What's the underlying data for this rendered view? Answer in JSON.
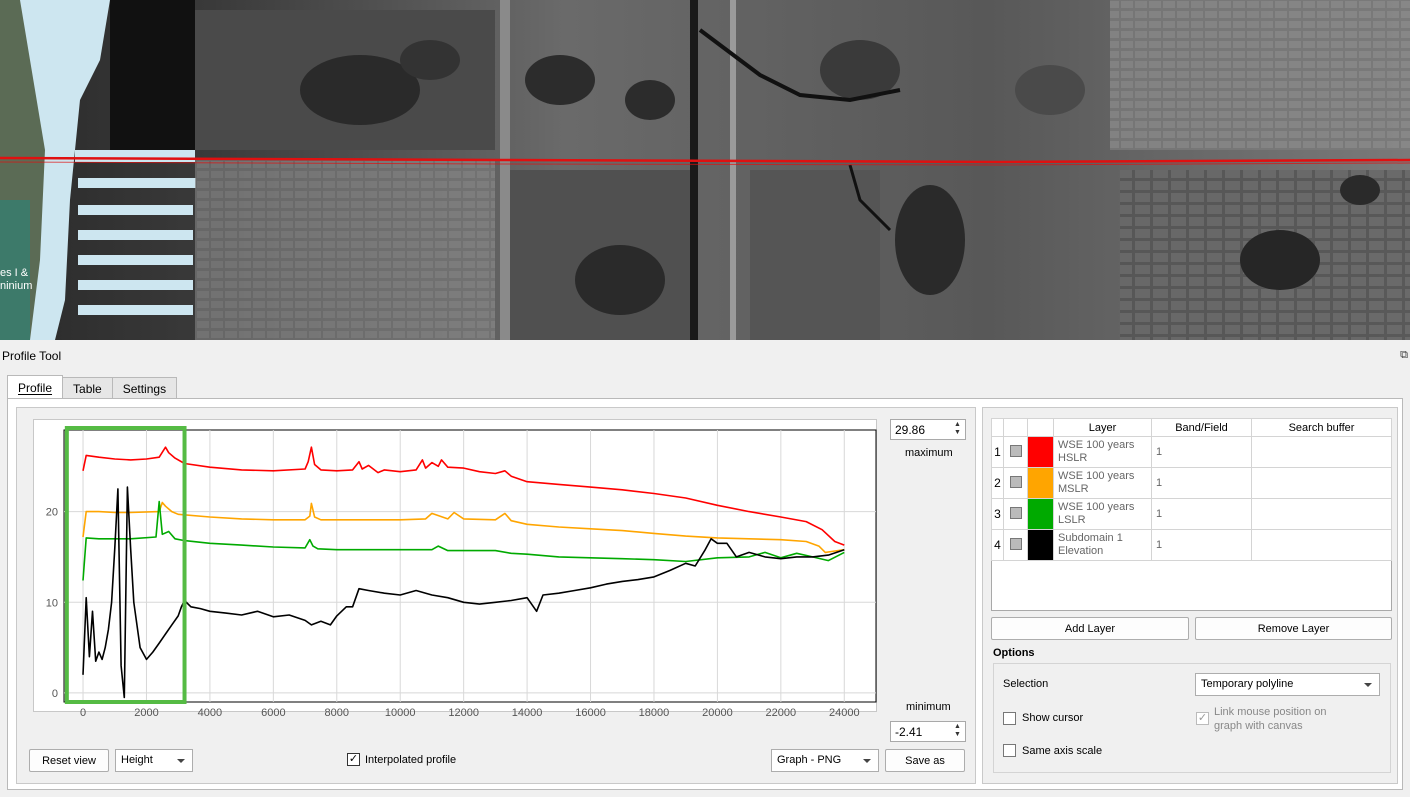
{
  "panel": {
    "title": "Profile Tool"
  },
  "tabs": [
    {
      "label": "Profile",
      "active": true
    },
    {
      "label": "Table",
      "active": false
    },
    {
      "label": "Settings",
      "active": false
    }
  ],
  "plot": {
    "max_value": "29.86",
    "max_label": "maximum",
    "min_value": "-2.41",
    "min_label": "minimum",
    "highlight_color": "#55bb44"
  },
  "controls": {
    "reset_view": "Reset view",
    "height_mode": "Height",
    "interpolated_label": "Interpolated profile",
    "interpolated_checked": true,
    "export_format": "Graph - PNG",
    "save_as": "Save as"
  },
  "layers_table": {
    "columns": [
      "Layer",
      "Band/Field",
      "Search buffer"
    ],
    "rows": [
      {
        "index": "1",
        "color": "#ff0000",
        "name": "WSE 100 years HSLR",
        "band": "1",
        "buffer": ""
      },
      {
        "index": "2",
        "color": "#ffa500",
        "name": "WSE 100 years MSLR",
        "band": "1",
        "buffer": ""
      },
      {
        "index": "3",
        "color": "#00aa00",
        "name": "WSE 100 years LSLR",
        "band": "1",
        "buffer": ""
      },
      {
        "index": "4",
        "color": "#000000",
        "name": "Subdomain 1 Elevation",
        "band": "1",
        "buffer": ""
      }
    ]
  },
  "buttons": {
    "add_layer": "Add Layer",
    "remove_layer": "Remove Layer"
  },
  "options": {
    "title": "Options",
    "selection_label": "Selection",
    "selection_value": "Temporary polyline",
    "show_cursor": "Show cursor",
    "link_mouse": "Link mouse position on graph with canvas",
    "same_axis": "Same axis scale"
  },
  "chart_data": {
    "type": "line",
    "xlim": [
      -600,
      25000
    ],
    "ylim": [
      -1,
      29
    ],
    "x_ticks": [
      0,
      2000,
      4000,
      6000,
      8000,
      10000,
      12000,
      14000,
      16000,
      18000,
      20000,
      22000,
      24000
    ],
    "y_ticks": [
      0,
      10,
      20
    ],
    "grid": true,
    "series": [
      {
        "name": "WSE 100 years HSLR",
        "color": "#ff0000",
        "x": [
          0,
          100,
          500,
          1000,
          1500,
          2000,
          2400,
          2600,
          2700,
          2900,
          3200,
          4000,
          5000,
          6000,
          7000,
          7100,
          7200,
          7300,
          7500,
          8000,
          8500,
          8700,
          8800,
          9000,
          9300,
          9500,
          10000,
          10500,
          10700,
          10800,
          11000,
          11200,
          11300,
          11500,
          12000,
          12500,
          13000,
          13300,
          13500,
          14000,
          15000,
          16000,
          17000,
          18000,
          19000,
          20000,
          21000,
          22000,
          22800,
          23300,
          23700,
          24000
        ],
        "y": [
          24.5,
          26.2,
          26.0,
          25.8,
          25.7,
          25.8,
          26.0,
          27.1,
          26.5,
          25.9,
          25.3,
          24.9,
          24.6,
          24.5,
          24.7,
          25.5,
          27.1,
          25.2,
          24.6,
          24.5,
          24.6,
          25.5,
          24.7,
          25.1,
          24.3,
          24.6,
          24.4,
          24.6,
          25.7,
          24.8,
          25.4,
          25.0,
          25.7,
          24.9,
          24.8,
          24.4,
          24.2,
          24.5,
          23.9,
          23.3,
          23.0,
          22.7,
          22.4,
          22.0,
          21.5,
          20.7,
          20.0,
          19.4,
          18.9,
          18.0,
          16.7,
          16.3
        ]
      },
      {
        "name": "WSE 100 years MSLR",
        "color": "#ffa500",
        "x": [
          0,
          100,
          500,
          1000,
          1500,
          2400,
          2500,
          2600,
          2800,
          3000,
          4000,
          5000,
          6000,
          7000,
          7150,
          7200,
          7300,
          7500,
          8000,
          9000,
          10000,
          10800,
          11000,
          11500,
          11700,
          12000,
          13000,
          13300,
          13500,
          14000,
          15000,
          16000,
          17000,
          18000,
          19000,
          20000,
          21000,
          22000,
          22800,
          23200,
          23400,
          23600,
          24000
        ],
        "y": [
          17.2,
          20.0,
          20.0,
          19.9,
          19.9,
          20.0,
          21.0,
          20.6,
          20.0,
          19.7,
          19.4,
          19.2,
          19.1,
          19.1,
          19.5,
          20.9,
          19.4,
          19.1,
          19.1,
          19.1,
          19.1,
          19.2,
          19.8,
          19.2,
          19.9,
          19.2,
          19.1,
          19.8,
          19.0,
          18.6,
          18.3,
          18.1,
          17.9,
          17.6,
          17.3,
          17.1,
          17.0,
          16.9,
          16.7,
          16.2,
          15.5,
          15.6,
          15.8
        ]
      },
      {
        "name": "WSE 100 years LSLR",
        "color": "#00aa00",
        "x": [
          0,
          100,
          500,
          1000,
          1500,
          2300,
          2400,
          2500,
          2700,
          2900,
          3200,
          4000,
          5000,
          6000,
          7000,
          7150,
          7250,
          7400,
          8000,
          9000,
          10000,
          11000,
          11200,
          11500,
          12000,
          13000,
          13500,
          14000,
          15000,
          16000,
          17000,
          18000,
          19000,
          20000,
          21000,
          21500,
          22000,
          22500,
          23000,
          23500,
          24000
        ],
        "y": [
          12.4,
          17.1,
          17.0,
          17.0,
          17.0,
          17.2,
          21.1,
          17.5,
          17.8,
          17.0,
          16.8,
          16.5,
          16.3,
          16.1,
          16.0,
          16.9,
          16.2,
          15.9,
          15.8,
          15.8,
          15.8,
          15.8,
          16.2,
          15.7,
          15.7,
          15.7,
          15.4,
          15.3,
          15.0,
          14.9,
          14.8,
          14.7,
          14.5,
          14.9,
          15.0,
          15.5,
          14.9,
          15.4,
          15.0,
          14.6,
          15.5
        ]
      },
      {
        "name": "Subdomain 1 Elevation",
        "color": "#000000",
        "x": [
          0,
          100,
          200,
          300,
          400,
          500,
          600,
          700,
          800,
          900,
          1000,
          1100,
          1200,
          1300,
          1400,
          1500,
          1600,
          1800,
          2000,
          2200,
          2400,
          2600,
          2800,
          3000,
          3100,
          3200,
          3400,
          3700,
          4000,
          4500,
          5000,
          5500,
          6000,
          6500,
          7000,
          7200,
          7500,
          7800,
          8000,
          8300,
          8500,
          8700,
          9000,
          9500,
          10000,
          10500,
          11000,
          11500,
          12000,
          12500,
          13000,
          13500,
          14000,
          14300,
          14500,
          15000,
          15500,
          16000,
          16500,
          17000,
          17500,
          18000,
          18500,
          19000,
          19300,
          19600,
          19800,
          20000,
          20300,
          20600,
          21000,
          21500,
          22000,
          22500,
          23000,
          23500,
          24000
        ],
        "y": [
          2.0,
          10.5,
          4.0,
          9.0,
          3.5,
          4.5,
          3.7,
          5.0,
          7.0,
          10.0,
          16.0,
          22.5,
          3.0,
          -0.5,
          22.7,
          16.0,
          10.0,
          5.0,
          3.7,
          4.5,
          5.5,
          6.5,
          7.5,
          8.5,
          9.5,
          10.2,
          9.5,
          9.3,
          9.0,
          8.8,
          8.6,
          9.0,
          8.4,
          8.6,
          8.0,
          7.5,
          7.9,
          7.5,
          8.5,
          9.5,
          9.5,
          11.5,
          11.3,
          11.0,
          10.8,
          11.3,
          10.8,
          10.5,
          10.0,
          9.8,
          10.0,
          10.2,
          10.5,
          9.0,
          10.8,
          11.0,
          11.3,
          11.6,
          12.0,
          12.3,
          12.5,
          12.8,
          13.5,
          14.3,
          14.0,
          15.7,
          17.0,
          16.5,
          16.5,
          15.0,
          15.5,
          15.0,
          14.8,
          15.0,
          15.0,
          15.2,
          15.8
        ]
      }
    ]
  }
}
